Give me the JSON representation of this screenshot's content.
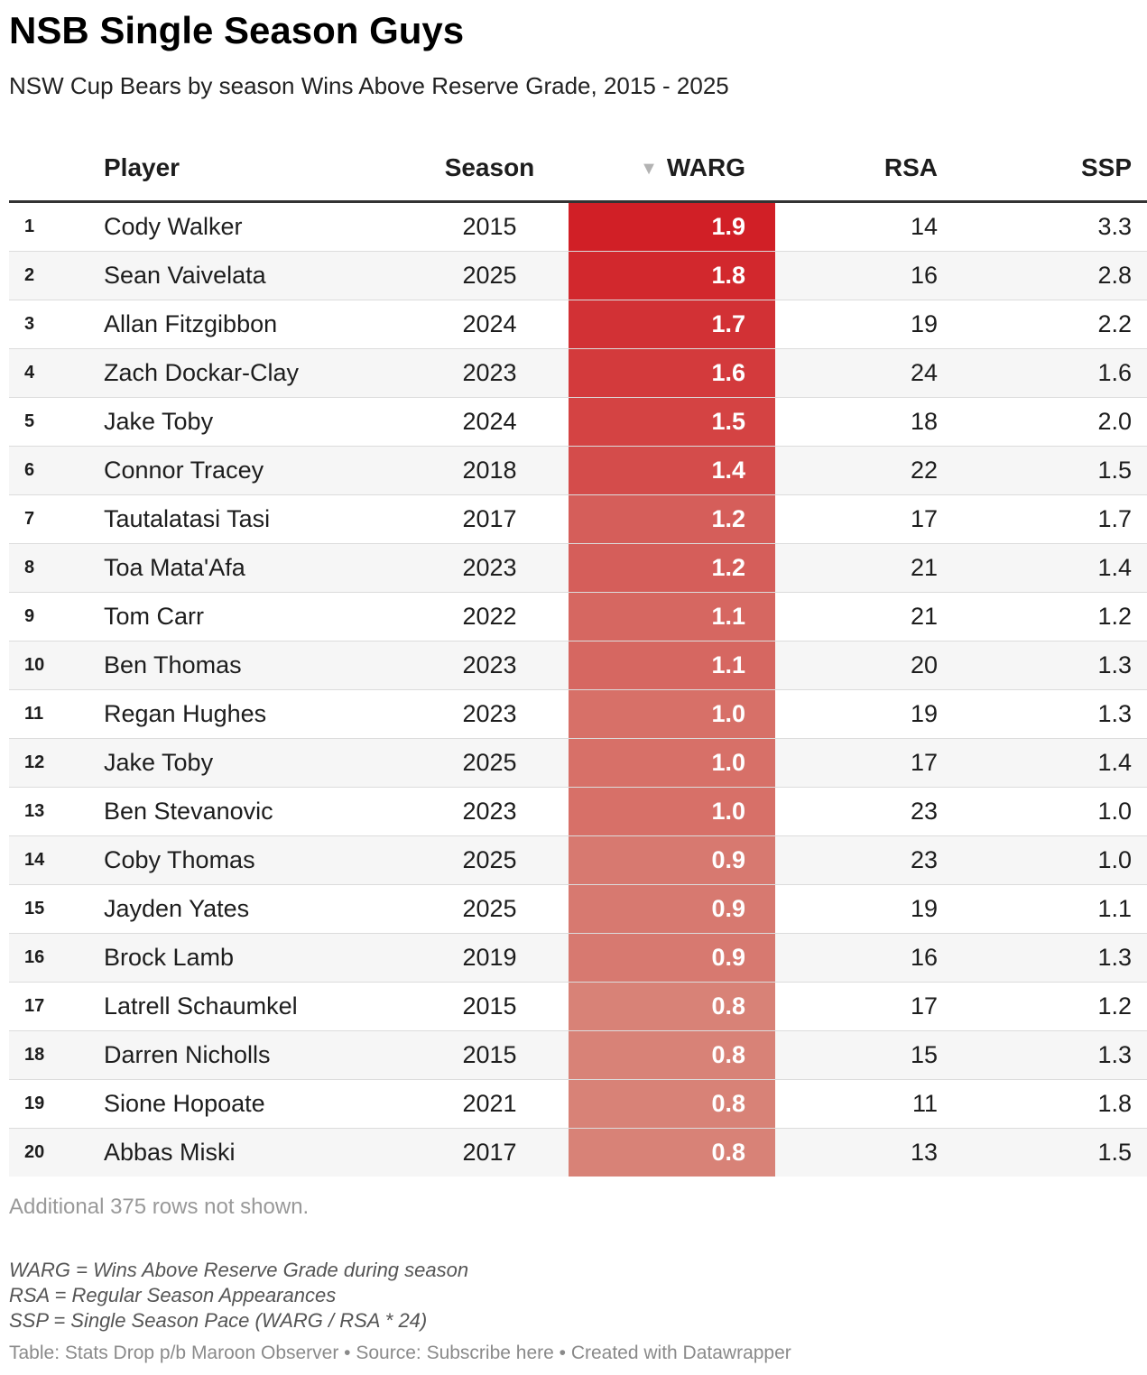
{
  "title": "NSB Single Season Guys",
  "subtitle": "NSW Cup Bears by season Wins Above Reserve Grade, 2015 - 2025",
  "sort_indicator": "▼",
  "colors": {
    "warg_high": "#d11f26",
    "warg_low": "#d88277",
    "text": "#1d1d1d",
    "muted": "#999999"
  },
  "chart_data": {
    "type": "table",
    "columns": [
      "",
      "Player",
      "Season",
      "WARG",
      "RSA",
      "SSP"
    ],
    "sorted_by": "WARG",
    "sort_direction": "descending",
    "rows": [
      {
        "rank": "1",
        "player": "Cody Walker",
        "season": "2015",
        "warg": "1.9",
        "rsa": "14",
        "ssp": "3.3"
      },
      {
        "rank": "2",
        "player": "Sean Vaivelata",
        "season": "2025",
        "warg": "1.8",
        "rsa": "16",
        "ssp": "2.8"
      },
      {
        "rank": "3",
        "player": "Allan Fitzgibbon",
        "season": "2024",
        "warg": "1.7",
        "rsa": "19",
        "ssp": "2.2"
      },
      {
        "rank": "4",
        "player": "Zach Dockar-Clay",
        "season": "2023",
        "warg": "1.6",
        "rsa": "24",
        "ssp": "1.6"
      },
      {
        "rank": "5",
        "player": "Jake Toby",
        "season": "2024",
        "warg": "1.5",
        "rsa": "18",
        "ssp": "2.0"
      },
      {
        "rank": "6",
        "player": "Connor Tracey",
        "season": "2018",
        "warg": "1.4",
        "rsa": "22",
        "ssp": "1.5"
      },
      {
        "rank": "7",
        "player": "Tautalatasi Tasi",
        "season": "2017",
        "warg": "1.2",
        "rsa": "17",
        "ssp": "1.7"
      },
      {
        "rank": "8",
        "player": "Toa Mata'Afa",
        "season": "2023",
        "warg": "1.2",
        "rsa": "21",
        "ssp": "1.4"
      },
      {
        "rank": "9",
        "player": "Tom Carr",
        "season": "2022",
        "warg": "1.1",
        "rsa": "21",
        "ssp": "1.2"
      },
      {
        "rank": "10",
        "player": "Ben Thomas",
        "season": "2023",
        "warg": "1.1",
        "rsa": "20",
        "ssp": "1.3"
      },
      {
        "rank": "11",
        "player": "Regan Hughes",
        "season": "2023",
        "warg": "1.0",
        "rsa": "19",
        "ssp": "1.3"
      },
      {
        "rank": "12",
        "player": "Jake Toby",
        "season": "2025",
        "warg": "1.0",
        "rsa": "17",
        "ssp": "1.4"
      },
      {
        "rank": "13",
        "player": "Ben Stevanovic",
        "season": "2023",
        "warg": "1.0",
        "rsa": "23",
        "ssp": "1.0"
      },
      {
        "rank": "14",
        "player": "Coby Thomas",
        "season": "2025",
        "warg": "0.9",
        "rsa": "23",
        "ssp": "1.0"
      },
      {
        "rank": "15",
        "player": "Jayden Yates",
        "season": "2025",
        "warg": "0.9",
        "rsa": "19",
        "ssp": "1.1"
      },
      {
        "rank": "16",
        "player": "Brock Lamb",
        "season": "2019",
        "warg": "0.9",
        "rsa": "16",
        "ssp": "1.3"
      },
      {
        "rank": "17",
        "player": "Latrell Schaumkel",
        "season": "2015",
        "warg": "0.8",
        "rsa": "17",
        "ssp": "1.2"
      },
      {
        "rank": "18",
        "player": "Darren Nicholls",
        "season": "2015",
        "warg": "0.8",
        "rsa": "15",
        "ssp": "1.3"
      },
      {
        "rank": "19",
        "player": "Sione Hopoate",
        "season": "2021",
        "warg": "0.8",
        "rsa": "11",
        "ssp": "1.8"
      },
      {
        "rank": "20",
        "player": "Abbas Miski",
        "season": "2017",
        "warg": "0.8",
        "rsa": "13",
        "ssp": "1.5"
      }
    ]
  },
  "more_rows_notice": "Additional 375 rows not shown.",
  "notes": [
    "WARG = Wins Above Reserve Grade during season",
    "RSA = Regular Season Appearances",
    "SSP = Single Season Pace (WARG / RSA * 24)"
  ],
  "credits": "Table: Stats Drop p/b Maroon Observer • Source: Subscribe here • Created with Datawrapper"
}
